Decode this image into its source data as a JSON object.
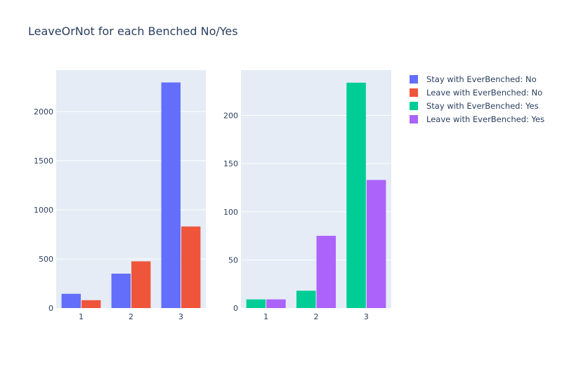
{
  "title": "LeaveOrNot for each Benched No/Yes",
  "colors": {
    "plot_bg": "#e5ecf6",
    "grid": "#ffffff",
    "text": "#2a3f5f"
  },
  "legend": {
    "placement": "right",
    "items": [
      {
        "label": "Stay with EverBenched: No",
        "color": "#636efa"
      },
      {
        "label": "Leave with EverBenched: No",
        "color": "#ef553b"
      },
      {
        "label": "Stay with EverBenched: Yes",
        "color": "#00cc96"
      },
      {
        "label": "Leave with EverBenched: Yes",
        "color": "#ab63fa"
      }
    ]
  },
  "chart_data": [
    {
      "type": "bar",
      "categories": [
        "1",
        "2",
        "3"
      ],
      "ylim": [
        0,
        2420
      ],
      "yticks": [
        0,
        500,
        1000,
        1500,
        2000
      ],
      "grid": true,
      "series": [
        {
          "name": "Stay with EverBenched: No",
          "color": "#636efa",
          "values": [
            145,
            350,
            2295
          ]
        },
        {
          "name": "Leave with EverBenched: No",
          "color": "#ef553b",
          "values": [
            80,
            475,
            830
          ]
        }
      ]
    },
    {
      "type": "bar",
      "categories": [
        "1",
        "2",
        "3"
      ],
      "ylim": [
        0,
        247
      ],
      "yticks": [
        0,
        50,
        100,
        150,
        200
      ],
      "grid": true,
      "series": [
        {
          "name": "Stay with EverBenched: Yes",
          "color": "#00cc96",
          "values": [
            9,
            18,
            234
          ]
        },
        {
          "name": "Leave with EverBenched: Yes",
          "color": "#ab63fa",
          "values": [
            9,
            75,
            133
          ]
        }
      ]
    }
  ]
}
